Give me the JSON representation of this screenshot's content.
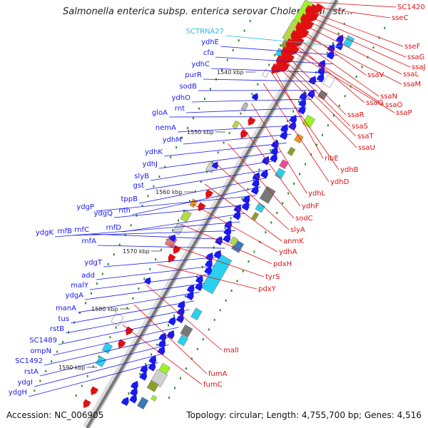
{
  "title": "Salmonella enterica subsp. enterica serovar Choleraesuis str...",
  "footer": {
    "accession": "Accession: NC_006905",
    "summary": "Topology: circular; Length: 4,755,700 bp; Genes: 4,516"
  },
  "colors": {
    "left_labels": "#1a1aee",
    "right_labels": "#e01010",
    "rna_label": "#2ab8e8",
    "backbone": "#777777",
    "ticks": "#2a8a2a"
  },
  "kbp_ticks": [
    "1540 kbp",
    "1550 kbp",
    "1560 kbp",
    "1570 kbp",
    "1580 kbp",
    "1590 kbp"
  ],
  "left_genes": [
    "SCTRNA27",
    "ydhE",
    "cfa",
    "ydhC",
    "purR",
    "sodB",
    "ydhO",
    "rnt",
    "gloA",
    "nemA",
    "ydhM",
    "ydhK",
    "ydhJ",
    "slyB",
    "gst",
    "tppB",
    "nth",
    "ydgP",
    "ydgQ",
    "rnfD",
    "ydgK",
    "rnfB",
    "rnfC",
    "rnfA",
    "ydgT",
    "add",
    "malY",
    "ydgA",
    "manA",
    "tus",
    "rstB",
    "SC1489",
    "ompN",
    "SC1492",
    "rstA",
    "ydgI",
    "ydgH"
  ],
  "right_genes": [
    "SC1420",
    "sseC",
    "sseF",
    "ssaG",
    "ssaJ",
    "ssaL",
    "ssaV",
    "ssaM",
    "ssaN",
    "ssaQ",
    "ssaO",
    "ssaP",
    "ssaR",
    "ssaS",
    "ssaT",
    "ssaU",
    "ribE",
    "ydhB",
    "ydhD",
    "ydhL",
    "ydhF",
    "sodC",
    "slyA",
    "anmK",
    "ydhA",
    "pdxH",
    "tyrS",
    "pdxY",
    "malI",
    "fumA",
    "fumC"
  ]
}
